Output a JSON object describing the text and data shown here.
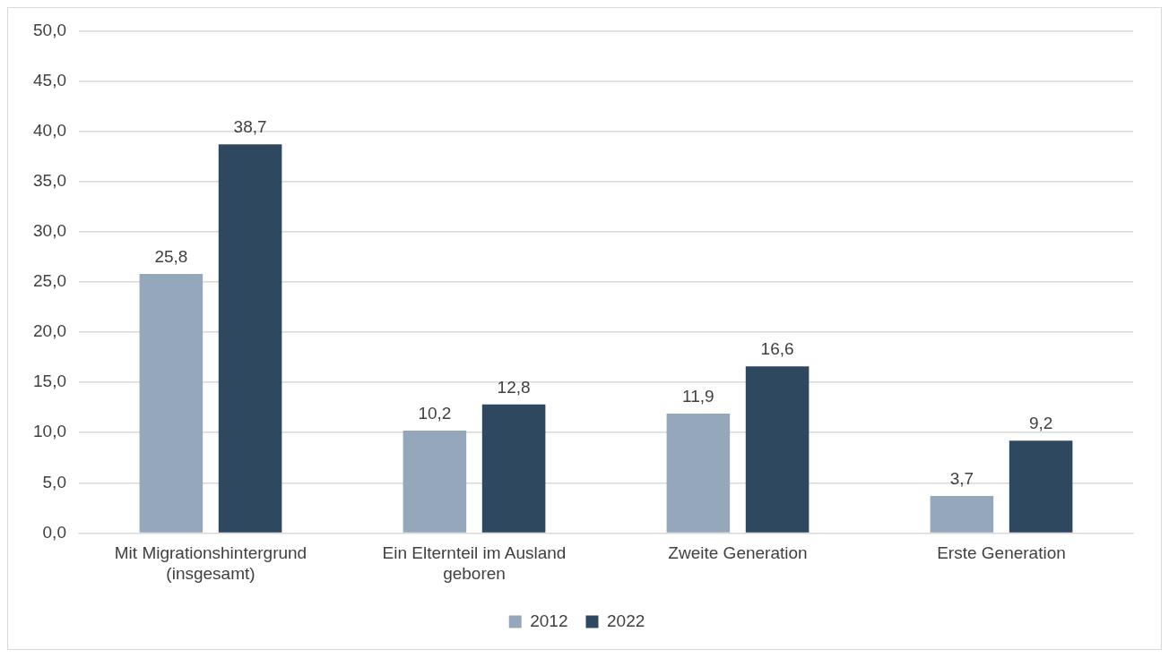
{
  "chart_data": {
    "type": "bar",
    "categories": [
      "Mit Migrationshintergrund (insgesamt)",
      "Ein Elternteil im Ausland geboren",
      "Zweite Generation",
      "Erste Generation"
    ],
    "series": [
      {
        "name": "2012",
        "color": "#94a7bb",
        "values": [
          25.8,
          10.2,
          11.9,
          3.7
        ],
        "value_labels": [
          "25,8",
          "10,2",
          "11,9",
          "3,7"
        ]
      },
      {
        "name": "2022",
        "color": "#2e4860",
        "values": [
          38.7,
          12.8,
          16.6,
          9.2
        ],
        "value_labels": [
          "38,7",
          "12,8",
          "16,6",
          "9,2"
        ]
      }
    ],
    "ylim": [
      0,
      50
    ],
    "yticks": [
      {
        "value": 0,
        "label": "0,0"
      },
      {
        "value": 5,
        "label": "5,0"
      },
      {
        "value": 10,
        "label": "10,0"
      },
      {
        "value": 15,
        "label": "15,0"
      },
      {
        "value": 20,
        "label": "20,0"
      },
      {
        "value": 25,
        "label": "25,0"
      },
      {
        "value": 30,
        "label": "30,0"
      },
      {
        "value": 35,
        "label": "35,0"
      },
      {
        "value": 40,
        "label": "40,0"
      },
      {
        "value": 45,
        "label": "45,0"
      },
      {
        "value": 50,
        "label": "50,0"
      }
    ],
    "grid": "y",
    "legend": "bottom"
  }
}
